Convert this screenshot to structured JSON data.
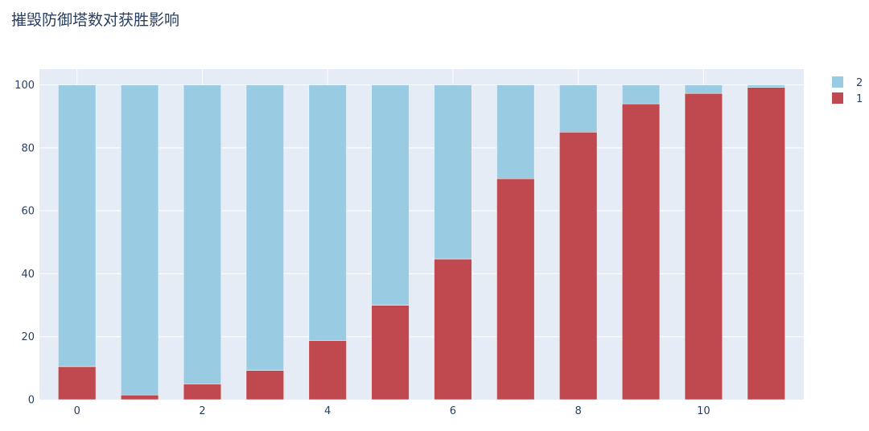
{
  "chart_data": {
    "type": "bar",
    "barmode": "stack",
    "title": "摧毁防御塔数对获胜影响",
    "xlabel": "",
    "ylabel": "",
    "x": [
      0,
      1,
      2,
      3,
      4,
      5,
      6,
      7,
      8,
      9,
      10,
      11
    ],
    "x_ticks": [
      0,
      2,
      4,
      6,
      8,
      10
    ],
    "y_ticks": [
      0,
      20,
      40,
      60,
      80,
      100
    ],
    "xlim": [
      -0.6,
      11.6
    ],
    "ylim": [
      0,
      105
    ],
    "grid": true,
    "legend_position": "top-right",
    "series": [
      {
        "name": "1",
        "color": "#c0494f",
        "values": [
          10.5,
          1.5,
          5,
          9.3,
          18.8,
          30,
          44.7,
          70.2,
          85,
          94,
          97.3,
          99.2
        ]
      },
      {
        "name": "2",
        "color": "#99cbe3",
        "values": [
          89.5,
          98.5,
          95,
          90.7,
          81.2,
          70,
          55.3,
          29.8,
          15,
          6,
          2.7,
          0.8
        ]
      }
    ],
    "legend_order": [
      "2",
      "1"
    ]
  }
}
